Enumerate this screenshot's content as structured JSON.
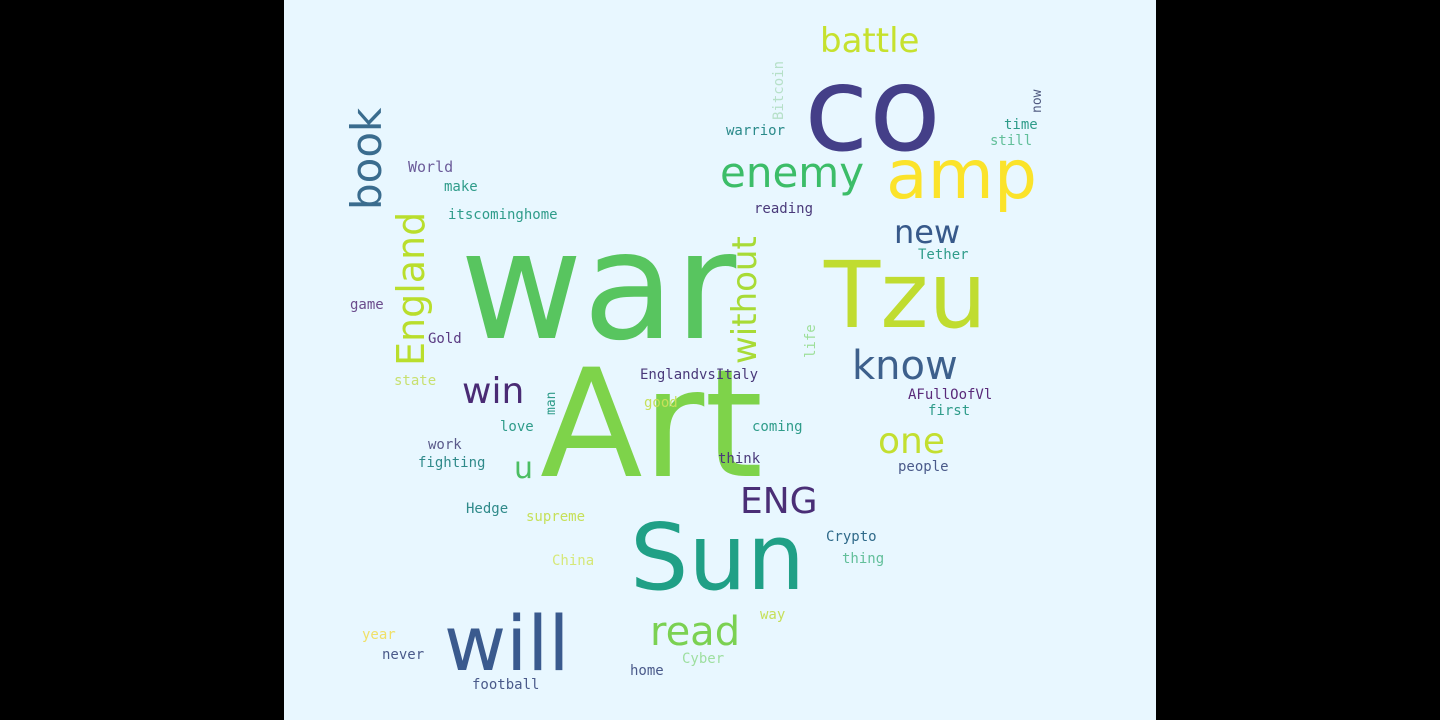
{
  "words": [
    {
      "text": "war",
      "size": 150,
      "color": "#58c55f"
    },
    {
      "text": "Art",
      "size": 150,
      "color": "#7ed34a"
    },
    {
      "text": "co",
      "size": 118,
      "color": "#443f88"
    },
    {
      "text": "Tzu",
      "size": 92,
      "color": "#c0dc30"
    },
    {
      "text": "Sun",
      "size": 92,
      "color": "#20a086"
    },
    {
      "text": "will",
      "size": 76,
      "color": "#3a5a8e"
    },
    {
      "text": "amp",
      "size": 68,
      "color": "#fbe32a"
    },
    {
      "text": "enemy",
      "size": 42,
      "color": "#3cbd68"
    },
    {
      "text": "book",
      "size": 42,
      "color": "#3a6c8e"
    },
    {
      "text": "England",
      "size": 38,
      "color": "#b9de2c"
    },
    {
      "text": "know",
      "size": 40,
      "color": "#3d608c"
    },
    {
      "text": "read",
      "size": 40,
      "color": "#7bd152"
    },
    {
      "text": "one",
      "size": 36,
      "color": "#c3df30"
    },
    {
      "text": "battle",
      "size": 34,
      "color": "#c6e12e"
    },
    {
      "text": "without",
      "size": 34,
      "color": "#a8db36"
    },
    {
      "text": "win",
      "size": 36,
      "color": "#4a2b74"
    },
    {
      "text": "ENG",
      "size": 36,
      "color": "#4a2e76"
    },
    {
      "text": "new",
      "size": 32,
      "color": "#37598a"
    },
    {
      "text": "u",
      "size": 30,
      "color": "#4cbe63"
    },
    {
      "text": "World",
      "size": 15,
      "color": "#6c5c9a"
    },
    {
      "text": "make",
      "size": 14,
      "color": "#2f9c8a"
    },
    {
      "text": "itscominghome",
      "size": 14,
      "color": "#2f9c8a"
    },
    {
      "text": "Bitcoin",
      "size": 14,
      "color": "#b6e0c8"
    },
    {
      "text": "warrior",
      "size": 14,
      "color": "#2a8a8a"
    },
    {
      "text": "now",
      "size": 13,
      "color": "#505a80"
    },
    {
      "text": "time",
      "size": 14,
      "color": "#2f9c8a"
    },
    {
      "text": "still",
      "size": 14,
      "color": "#62bf9a"
    },
    {
      "text": "reading",
      "size": 14,
      "color": "#4a3a7a"
    },
    {
      "text": "Tether",
      "size": 14,
      "color": "#2f9c8a"
    },
    {
      "text": "game",
      "size": 14,
      "color": "#6b4c8c"
    },
    {
      "text": "Gold",
      "size": 14,
      "color": "#5a3a82"
    },
    {
      "text": "life",
      "size": 14,
      "color": "#9edf9a"
    },
    {
      "text": "state",
      "size": 14,
      "color": "#c8e070"
    },
    {
      "text": "EnglandvsItaly",
      "size": 14,
      "color": "#4a3a7a"
    },
    {
      "text": "AFullOofVl",
      "size": 14,
      "color": "#5a2a7a"
    },
    {
      "text": "first",
      "size": 14,
      "color": "#2f9c8a"
    },
    {
      "text": "man",
      "size": 13,
      "color": "#2f9c8a"
    },
    {
      "text": "good",
      "size": 14,
      "color": "#c6e05a"
    },
    {
      "text": "love",
      "size": 14,
      "color": "#2f9c8a"
    },
    {
      "text": "coming",
      "size": 14,
      "color": "#2f9c8a"
    },
    {
      "text": "work",
      "size": 14,
      "color": "#5a5a8a"
    },
    {
      "text": "fighting",
      "size": 14,
      "color": "#2f8a8a"
    },
    {
      "text": "think",
      "size": 14,
      "color": "#4a3a7a"
    },
    {
      "text": "people",
      "size": 14,
      "color": "#4a5a8a"
    },
    {
      "text": "Hedge",
      "size": 14,
      "color": "#2f8a8a"
    },
    {
      "text": "supreme",
      "size": 14,
      "color": "#c6e05a"
    },
    {
      "text": "Crypto",
      "size": 14,
      "color": "#2f6a8a"
    },
    {
      "text": "thing",
      "size": 14,
      "color": "#62bf9a"
    },
    {
      "text": "China",
      "size": 14,
      "color": "#d6e878"
    },
    {
      "text": "way",
      "size": 14,
      "color": "#c6e05a"
    },
    {
      "text": "year",
      "size": 14,
      "color": "#f0e068"
    },
    {
      "text": "never",
      "size": 14,
      "color": "#4a5a8a"
    },
    {
      "text": "Cyber",
      "size": 14,
      "color": "#9edfa0"
    },
    {
      "text": "home",
      "size": 14,
      "color": "#4a5a8a"
    },
    {
      "text": "football",
      "size": 14,
      "color": "#4a5a8a"
    }
  ]
}
